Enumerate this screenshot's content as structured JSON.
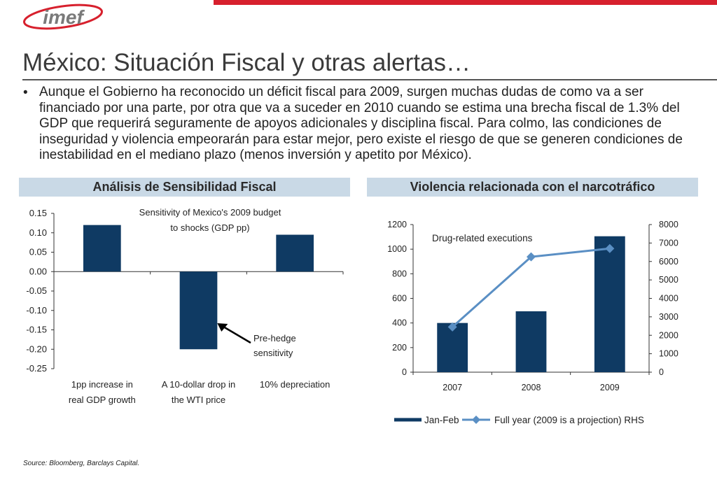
{
  "colors": {
    "accent_red": "#d7202d",
    "navy": "#0f3a63",
    "line_blue": "#5a8fc4",
    "header_bg": "#c9d9e6"
  },
  "logo": {
    "text": "imef"
  },
  "header": {
    "title": "México: Situación Fiscal y otras alertas…",
    "bullet": "Aunque el Gobierno ha reconocido un déficit fiscal para  2009, surgen muchas dudas de como va a ser financiado por una parte, por otra que va a suceder en 2010 cuando se estima una brecha fiscal de 1.3% del GDP que requerirá seguramente de apoyos adicionales y disciplina fiscal. Para colmo, las condiciones de inseguridad y violencia empeorarán para estar mejor, pero existe el riesgo de que se generen condiciones de inestabilidad en el mediano plazo (menos inversión y apetito por México)."
  },
  "sections": {
    "left_title": "Análisis de Sensibilidad Fiscal",
    "right_title": "Violencia relacionada con el narcotráfico"
  },
  "source": "Source: Bloomberg, Barclays Capital.",
  "chart_data": [
    {
      "type": "bar",
      "title_lines": [
        "Sensitivity of Mexico's 2009 budget",
        "to shocks (GDP pp)"
      ],
      "categories": [
        [
          "1pp increase in",
          "real GDP growth"
        ],
        [
          "A 10-dollar drop in",
          "the WTI price"
        ],
        [
          "10% depreciation"
        ]
      ],
      "values": [
        0.12,
        -0.2,
        0.095
      ],
      "ylim": [
        -0.25,
        0.15
      ],
      "yticks": [
        "0.15",
        "0.10",
        "0.05",
        "0.00",
        "-0.05",
        "-0.10",
        "-0.15",
        "-0.20",
        "-0.25"
      ],
      "annotation_lines": [
        "Pre-hedge",
        "sensitivity"
      ]
    },
    {
      "type": "bar",
      "title": "Drug-related executions",
      "categories": [
        "2007",
        "2008",
        "2009"
      ],
      "series": [
        {
          "name": "Jan-Feb",
          "type": "bar",
          "axis": "left",
          "values": [
            400,
            495,
            1105
          ]
        },
        {
          "name": "Full year (2009 is a projection) RHS",
          "type": "line",
          "axis": "right",
          "values": [
            2450,
            6250,
            6700
          ]
        }
      ],
      "ylim_left": [
        0,
        1200
      ],
      "yticks_left": [
        "0",
        "200",
        "400",
        "600",
        "800",
        "1000",
        "1200"
      ],
      "ylim_right": [
        0,
        8000
      ],
      "yticks_right": [
        "0",
        "1000",
        "2000",
        "3000",
        "4000",
        "5000",
        "6000",
        "7000",
        "8000"
      ]
    }
  ]
}
